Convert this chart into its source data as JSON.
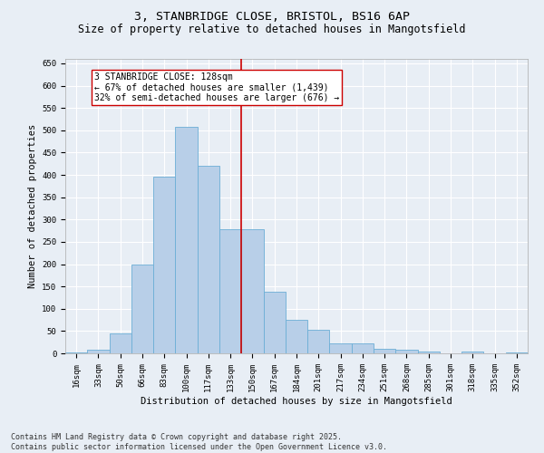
{
  "title_line1": "3, STANBRIDGE CLOSE, BRISTOL, BS16 6AP",
  "title_line2": "Size of property relative to detached houses in Mangotsfield",
  "xlabel": "Distribution of detached houses by size in Mangotsfield",
  "ylabel": "Number of detached properties",
  "bar_color": "#b8cfe8",
  "bar_edge_color": "#6baed6",
  "background_color": "#e8eef5",
  "grid_color": "#ffffff",
  "categories": [
    "16sqm",
    "33sqm",
    "50sqm",
    "66sqm",
    "83sqm",
    "100sqm",
    "117sqm",
    "133sqm",
    "150sqm",
    "167sqm",
    "184sqm",
    "201sqm",
    "217sqm",
    "234sqm",
    "251sqm",
    "268sqm",
    "285sqm",
    "301sqm",
    "318sqm",
    "335sqm",
    "352sqm"
  ],
  "values": [
    3,
    8,
    45,
    200,
    395,
    507,
    420,
    278,
    278,
    138,
    75,
    52,
    22,
    22,
    10,
    8,
    4,
    0,
    5,
    0,
    2
  ],
  "vline_x": 7.5,
  "vline_color": "#cc0000",
  "annotation_text": "3 STANBRIDGE CLOSE: 128sqm\n← 67% of detached houses are smaller (1,439)\n32% of semi-detached houses are larger (676) →",
  "annotation_box_color": "#ffffff",
  "annotation_box_edge": "#cc0000",
  "ylim": [
    0,
    660
  ],
  "yticks": [
    0,
    50,
    100,
    150,
    200,
    250,
    300,
    350,
    400,
    450,
    500,
    550,
    600,
    650
  ],
  "footer_line1": "Contains HM Land Registry data © Crown copyright and database right 2025.",
  "footer_line2": "Contains public sector information licensed under the Open Government Licence v3.0.",
  "title_fontsize": 9.5,
  "subtitle_fontsize": 8.5,
  "axis_label_fontsize": 7.5,
  "tick_fontsize": 6.5,
  "annotation_fontsize": 7,
  "footer_fontsize": 6
}
